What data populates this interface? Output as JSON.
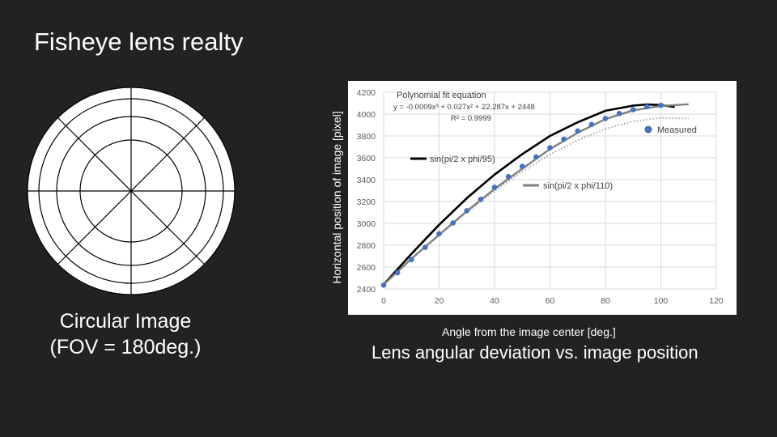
{
  "slide": {
    "title": "Fisheye lens realty",
    "circle_caption_line1": "Circular Image",
    "circle_caption_line2": "(FOV = 180deg.)",
    "chart_caption": "Lens angular deviation vs. image position"
  },
  "colors": {
    "background": "#222222",
    "measured_marker": "#4472c4",
    "fit_line": "#a6a6a6",
    "sin95_line": "#000000",
    "sin110_line": "#7f7f7f"
  },
  "chart_data": {
    "type": "scatter",
    "xlabel": "Angle from the image center [deg.]",
    "ylabel": "Horizontal position of image [pixel]",
    "xlim": [
      0,
      120
    ],
    "ylim": [
      2400,
      4200
    ],
    "xticks": [
      0,
      20,
      40,
      60,
      80,
      100,
      120
    ],
    "yticks": [
      2400,
      2600,
      2800,
      3000,
      3200,
      3400,
      3600,
      3800,
      4000,
      4200
    ],
    "grid": true,
    "annotations": {
      "fit_title": "Polynomial fit equation",
      "fit_equation": "y = -0.0009x³ + 0.027x² + 22.287x + 2448",
      "r_squared": "R² = 0.9999"
    },
    "series": [
      {
        "name": "Measured",
        "kind": "markers",
        "x": [
          0,
          5,
          10,
          15,
          20,
          25,
          30,
          35,
          40,
          45,
          50,
          55,
          60,
          65,
          70,
          75,
          80,
          85,
          90,
          95,
          100
        ],
        "y": [
          2435,
          2548,
          2668,
          2780,
          2905,
          3003,
          3115,
          3220,
          3330,
          3427,
          3522,
          3608,
          3692,
          3770,
          3845,
          3905,
          3960,
          4005,
          4040,
          4068,
          4080
        ]
      },
      {
        "name": "sin(pi/2 x phi/95)",
        "kind": "line",
        "x": [
          0,
          10,
          20,
          30,
          40,
          50,
          60,
          70,
          80,
          90,
          95,
          100,
          105
        ],
        "y": [
          2440,
          2721,
          2987,
          3230,
          3446,
          3634,
          3800,
          3925,
          4030,
          4078,
          4088,
          4083,
          4065
        ]
      },
      {
        "name": "sin(pi/2 x phi/110)",
        "kind": "line",
        "x": [
          0,
          10,
          20,
          30,
          40,
          50,
          60,
          70,
          80,
          90,
          100,
          110
        ],
        "y": [
          2440,
          2676,
          2895,
          3112,
          3315,
          3500,
          3680,
          3830,
          3955,
          4035,
          4075,
          4090
        ]
      },
      {
        "name": "",
        "kind": "dotted-fit",
        "x": [
          0,
          10,
          20,
          30,
          40,
          50,
          60,
          70,
          80,
          90,
          100,
          110
        ],
        "y": [
          2448,
          2673,
          2892,
          3101,
          3296,
          3474,
          3630,
          3762,
          3864,
          3933,
          3966,
          3958
        ]
      }
    ],
    "legend_labels": {
      "measured": "Measured",
      "sin95": "sin(pi/2 x phi/95)",
      "sin110": "sin(pi/2 x phi/110)"
    }
  }
}
